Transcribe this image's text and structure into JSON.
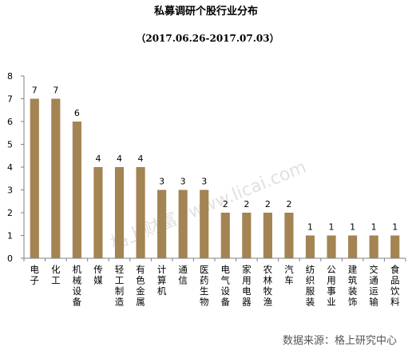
{
  "header": {
    "title": "私募调研个股行业分布",
    "subtitle": "（2017.06.26-2017.07.03）"
  },
  "watermark": {
    "cn": "格上财富",
    "url": "www.licai.com"
  },
  "source": "数据来源：格上研究中心",
  "colors": {
    "bar": "#a38452",
    "axis": "#808080"
  },
  "chart_data": {
    "type": "bar",
    "title": "私募调研个股行业分布",
    "subtitle": "（2017.06.26-2017.07.03）",
    "xlabel": "",
    "ylabel": "",
    "ylim": [
      0,
      8
    ],
    "yticks": [
      0,
      1,
      2,
      3,
      4,
      5,
      6,
      7,
      8
    ],
    "grid": false,
    "legend": "none",
    "categories": [
      "电子",
      "化工",
      "机械设备",
      "传媒",
      "轻工制造",
      "有色金属",
      "计算机",
      "通信",
      "医药生物",
      "电气设备",
      "家用电器",
      "农林牧渔",
      "汽车",
      "纺织服装",
      "公用事业",
      "建筑装饰",
      "交通运输",
      "食品饮料"
    ],
    "values": [
      7,
      7,
      6,
      4,
      4,
      4,
      3,
      3,
      3,
      2,
      2,
      2,
      2,
      1,
      1,
      1,
      1,
      1
    ]
  }
}
